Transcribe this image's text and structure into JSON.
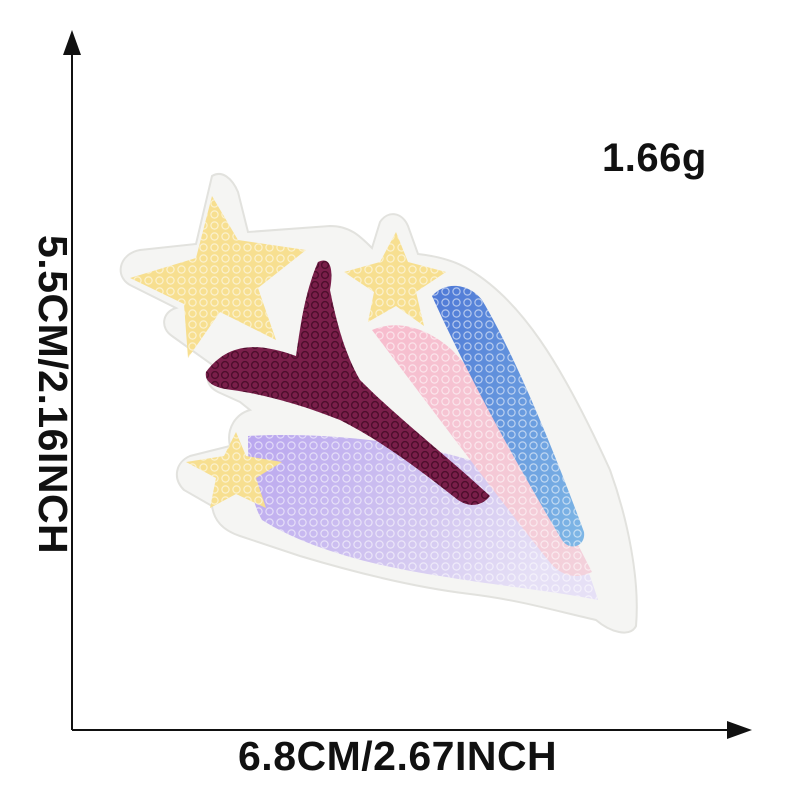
{
  "product": {
    "weight_label": "1.66g",
    "width_label": "6.8CM/2.67INCH",
    "height_label": "5.5CM/2.16INCH",
    "illustration": "shooting-star-sequin-patch",
    "colors": {
      "star_yellow": "#f6dc8a",
      "blue_stripe": "#5b86d8",
      "pink_stripe": "#f4b6c8",
      "maroon_stripe": "#7a1f4a",
      "lilac_tail": "#c7b4ea",
      "border_white": "#f4f4f4"
    }
  }
}
